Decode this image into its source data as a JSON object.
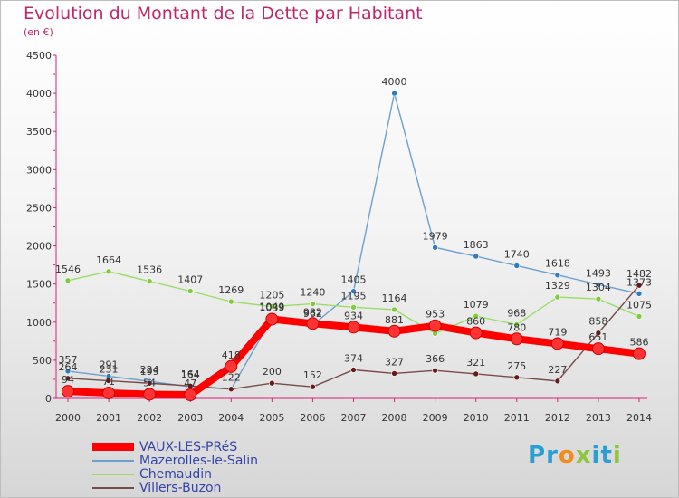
{
  "header": {
    "title": "Evolution du Montant de la Dette par Habitant",
    "subtitle": "(en €)"
  },
  "logo": {
    "text": "Proxiti",
    "letters": [
      {
        "ch": "P",
        "color": "#2a9fd6"
      },
      {
        "ch": "r",
        "color": "#2a9fd6"
      },
      {
        "ch": "o",
        "color": "#f28c1e"
      },
      {
        "ch": "x",
        "color": "#8cc63f"
      },
      {
        "ch": "i",
        "color": "#2a9fd6"
      },
      {
        "ch": "t",
        "color": "#2a9fd6"
      },
      {
        "ch": "i",
        "color": "#8cc63f"
      }
    ]
  },
  "chart_data": {
    "type": "line",
    "title": "Evolution du Montant de la Dette par Habitant",
    "ylabel": "(en €)",
    "x": [
      "2000",
      "2001",
      "2002",
      "2003",
      "2004",
      "2005",
      "2006",
      "2007",
      "2008",
      "2009",
      "2010",
      "2011",
      "2012",
      "2013",
      "2014"
    ],
    "ylim": [
      0,
      4500
    ],
    "yticks": [
      0,
      500,
      1000,
      1500,
      2000,
      2500,
      3000,
      3500,
      4000,
      4500
    ],
    "grid": false,
    "legend": "bottom-left",
    "series": [
      {
        "name": "VAUX-LES-PRéS",
        "color": "#ff0000",
        "point_color": "#ff3333",
        "width": 8,
        "show_labels": true,
        "values": [
          94,
          71,
          54,
          47,
          418,
          1039,
          982,
          934,
          881,
          953,
          860,
          780,
          719,
          651,
          586
        ],
        "labels": [
          "94",
          "71",
          "54",
          "47",
          "418",
          "1039",
          "982",
          "934",
          "881",
          "953",
          "860",
          "780",
          "719",
          "651",
          "586"
        ]
      },
      {
        "name": "Mazerolles-le-Salin",
        "color": "#6ba0d0",
        "point_color": "#2f7bbf",
        "width": 1.4,
        "show_labels": true,
        "values": [
          357,
          291,
          224,
          154,
          122,
          1049,
          962,
          1405,
          4000,
          1979,
          1863,
          1740,
          1618,
          1493,
          1373
        ],
        "labels": [
          "357",
          "291",
          "224",
          "154",
          "122",
          "1049",
          "962",
          "1405",
          "4000",
          "1979",
          "1863",
          "1740",
          "1618",
          "1493",
          "1373"
        ]
      },
      {
        "name": "Chemaudin",
        "color": "#99dd66",
        "point_color": "#7fcc3a",
        "width": 1.4,
        "show_labels": true,
        "values": [
          1546,
          1664,
          1536,
          1407,
          1269,
          1205,
          1240,
          1195,
          1164,
          850,
          1079,
          968,
          1329,
          1304,
          1075
        ],
        "labels": [
          "1546",
          "1664",
          "1536",
          "1407",
          "1269",
          "1205",
          "1240",
          "1195",
          "1164",
          "",
          "1079",
          "968",
          "1329",
          "1304",
          "1075"
        ]
      },
      {
        "name": "Villers-Buzon",
        "color": "#7a4a4a",
        "point_color": "#661a1a",
        "width": 1.4,
        "show_labels": true,
        "values": [
          264,
          231,
          199,
          164,
          122,
          200,
          152,
          374,
          327,
          366,
          321,
          275,
          227,
          858,
          1482
        ],
        "labels": [
          "264",
          "231",
          "199",
          "164",
          "",
          "200",
          "152",
          "374",
          "327",
          "366",
          "321",
          "275",
          "227",
          "858",
          "1482"
        ]
      }
    ]
  }
}
